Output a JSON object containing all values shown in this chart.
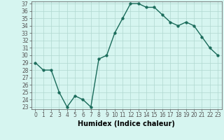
{
  "x": [
    0,
    1,
    2,
    3,
    4,
    5,
    6,
    7,
    8,
    9,
    10,
    11,
    12,
    13,
    14,
    15,
    16,
    17,
    18,
    19,
    20,
    21,
    22,
    23
  ],
  "y": [
    29,
    28,
    28,
    25,
    23,
    24.5,
    24,
    23,
    29.5,
    30,
    33,
    35,
    37,
    37,
    36.5,
    36.5,
    35.5,
    34.5,
    34,
    34.5,
    34,
    32.5,
    31,
    30
  ],
  "line_color": "#1a6b5a",
  "marker_color": "#1a6b5a",
  "bg_color": "#d6f5f0",
  "grid_color": "#b0d8d0",
  "xlabel": "Humidex (Indice chaleur)",
  "ylim": [
    23,
    37
  ],
  "xlim": [
    -0.5,
    23.5
  ],
  "yticks": [
    23,
    24,
    25,
    26,
    27,
    28,
    29,
    30,
    31,
    32,
    33,
    34,
    35,
    36,
    37
  ],
  "xticks": [
    0,
    1,
    2,
    3,
    4,
    5,
    6,
    7,
    8,
    9,
    10,
    11,
    12,
    13,
    14,
    15,
    16,
    17,
    18,
    19,
    20,
    21,
    22,
    23
  ],
  "axis_color": "#555555",
  "font_size_label": 7,
  "font_size_tick": 5.5,
  "line_width": 1.0,
  "marker_size": 2.5
}
